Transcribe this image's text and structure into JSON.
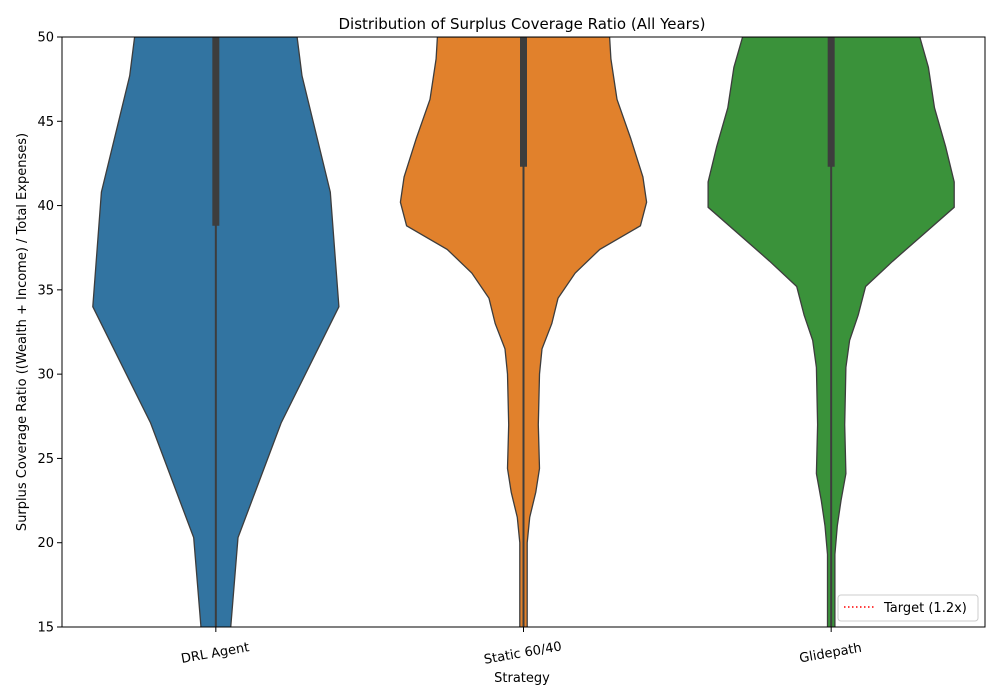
{
  "chart_data": {
    "type": "violin",
    "title": "Distribution of Surplus Coverage Ratio (All Years)",
    "xlabel": "Strategy",
    "ylabel": "Surplus Coverage Ratio ((Wealth + Income) / Total Expenses)",
    "ylim": [
      15,
      50
    ],
    "yticks": [
      15,
      20,
      25,
      30,
      35,
      40,
      45,
      50
    ],
    "categories": [
      "DRL Agent",
      "Static 60/40",
      "Glidepath"
    ],
    "colors": [
      "#3274a1",
      "#e1812c",
      "#3a923a"
    ],
    "grid": false,
    "legend": {
      "position": "lower-right",
      "entries": [
        {
          "label": "Target (1.2x)",
          "color": "#ff0000",
          "style": "dotted"
        }
      ]
    },
    "violins": [
      {
        "name": "DRL Agent",
        "box_q1": 38.8,
        "box_q3": 50,
        "profile": [
          {
            "y": 14.9,
            "w": 0.12
          },
          {
            "y": 20.3,
            "w": 0.18
          },
          {
            "y": 27.1,
            "w": 0.53
          },
          {
            "y": 34.0,
            "w": 1.0
          },
          {
            "y": 40.8,
            "w": 0.93
          },
          {
            "y": 47.7,
            "w": 0.7
          },
          {
            "y": 50.0,
            "w": 0.66
          }
        ]
      },
      {
        "name": "Static 60/40",
        "box_q1": 42.3,
        "box_q3": 50,
        "profile": [
          {
            "y": 14.9,
            "w": 0.03
          },
          {
            "y": 20.0,
            "w": 0.03
          },
          {
            "y": 21.5,
            "w": 0.05
          },
          {
            "y": 23.0,
            "w": 0.1
          },
          {
            "y": 24.4,
            "w": 0.13
          },
          {
            "y": 27.0,
            "w": 0.12
          },
          {
            "y": 30.0,
            "w": 0.13
          },
          {
            "y": 31.5,
            "w": 0.15
          },
          {
            "y": 33.0,
            "w": 0.23
          },
          {
            "y": 34.5,
            "w": 0.28
          },
          {
            "y": 36.0,
            "w": 0.42
          },
          {
            "y": 37.4,
            "w": 0.62
          },
          {
            "y": 38.8,
            "w": 0.95
          },
          {
            "y": 40.2,
            "w": 1.0
          },
          {
            "y": 41.7,
            "w": 0.97
          },
          {
            "y": 44.0,
            "w": 0.87
          },
          {
            "y": 46.3,
            "w": 0.76
          },
          {
            "y": 48.7,
            "w": 0.71
          },
          {
            "y": 50.0,
            "w": 0.7
          }
        ]
      },
      {
        "name": "Glidepath",
        "box_q1": 42.3,
        "box_q3": 50,
        "profile": [
          {
            "y": 14.9,
            "w": 0.03
          },
          {
            "y": 19.3,
            "w": 0.03
          },
          {
            "y": 21.0,
            "w": 0.05
          },
          {
            "y": 22.5,
            "w": 0.08
          },
          {
            "y": 24.1,
            "w": 0.12
          },
          {
            "y": 27.0,
            "w": 0.11
          },
          {
            "y": 30.4,
            "w": 0.12
          },
          {
            "y": 32.0,
            "w": 0.15
          },
          {
            "y": 33.5,
            "w": 0.22
          },
          {
            "y": 35.2,
            "w": 0.28
          },
          {
            "y": 36.7,
            "w": 0.5
          },
          {
            "y": 38.3,
            "w": 0.75
          },
          {
            "y": 39.9,
            "w": 1.0
          },
          {
            "y": 41.4,
            "w": 1.0
          },
          {
            "y": 43.5,
            "w": 0.93
          },
          {
            "y": 45.8,
            "w": 0.84
          },
          {
            "y": 48.2,
            "w": 0.79
          },
          {
            "y": 50.0,
            "w": 0.72
          }
        ]
      }
    ]
  }
}
